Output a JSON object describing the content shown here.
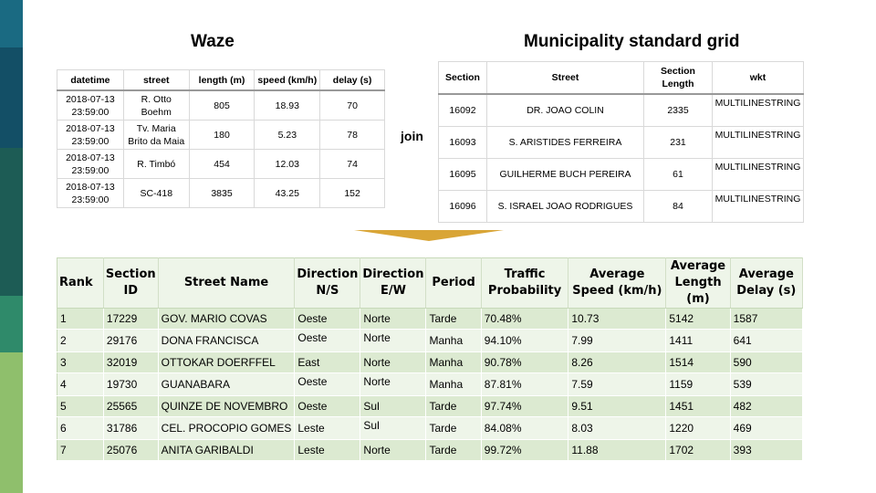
{
  "colors": {
    "sidebar": [
      "#1a6a82",
      "#134f66",
      "#1d5c55",
      "#2f8a6a",
      "#8fbf6c"
    ],
    "arrow": "#d9a536",
    "row_odd": "#dcead1",
    "row_even": "#eef5e9"
  },
  "waze": {
    "title": "Waze",
    "headers": [
      "datetime",
      "street",
      "length (m)",
      "speed (km/h)",
      "delay (s)"
    ],
    "rows": [
      [
        "2018-07-13 23:59:00",
        "R. Otto Boehm",
        "805",
        "18.93",
        "70"
      ],
      [
        "2018-07-13 23:59:00",
        "Tv. Maria Brito da Maia",
        "180",
        "5.23",
        "78"
      ],
      [
        "2018-07-13 23:59:00",
        "R. Timbó",
        "454",
        "12.03",
        "74"
      ],
      [
        "2018-07-13 23:59:00",
        "SC-418",
        "3835",
        "43.25",
        "152"
      ]
    ]
  },
  "join_label": "join",
  "grid": {
    "title": "Municipality standard grid",
    "headers": [
      "Section",
      "Street",
      "Section Length",
      "wkt"
    ],
    "rows": [
      [
        "16092",
        "DR. JOAO COLIN",
        "2335",
        "MULTILINESTRING"
      ],
      [
        "16093",
        "S. ARISTIDES FERREIRA",
        "231",
        "MULTILINESTRING"
      ],
      [
        "16095",
        "GUILHERME BUCH PEREIRA",
        "61",
        "MULTILINESTRING"
      ],
      [
        "16096",
        "S. ISRAEL JOAO RODRIGUES",
        "84",
        "MULTILINESTRING"
      ]
    ]
  },
  "result": {
    "headers": [
      "Rank",
      "Section ID",
      "Street Name",
      "Direction N/S",
      "Direction E/W",
      "Period",
      "Traffic Probability",
      "Average Speed (km/h)",
      "Average Length (m)",
      "Average Delay (s)"
    ],
    "rows": [
      [
        "1",
        "17229",
        "GOV. MARIO COVAS",
        "Oeste",
        "Norte",
        "Tarde",
        "70.48%",
        "10.73",
        "5142",
        "1587"
      ],
      [
        "2",
        "29176",
        "DONA FRANCISCA",
        "Oeste",
        "Norte",
        "Manha",
        "94.10%",
        "7.99",
        "1411",
        "641"
      ],
      [
        "3",
        "32019",
        "OTTOKAR DOERFFEL",
        "East",
        "Norte",
        "Manha",
        "90.78%",
        "8.26",
        "1514",
        "590"
      ],
      [
        "4",
        "19730",
        "GUANABARA",
        "Oeste",
        "Norte",
        "Manha",
        "87.81%",
        "7.59",
        "1159",
        "539"
      ],
      [
        "5",
        "25565",
        "QUINZE DE NOVEMBRO",
        "Oeste",
        "Sul",
        "Tarde",
        "97.74%",
        "9.51",
        "1451",
        "482"
      ],
      [
        "6",
        "31786",
        "CEL. PROCOPIO GOMES",
        "Leste",
        "Sul",
        "Tarde",
        "84.08%",
        "8.03",
        "1220",
        "469"
      ],
      [
        "7",
        "25076",
        "ANITA GARIBALDI",
        "Leste",
        "Norte",
        "Tarde",
        "99.72%",
        "11.88",
        "1702",
        "393"
      ]
    ]
  }
}
